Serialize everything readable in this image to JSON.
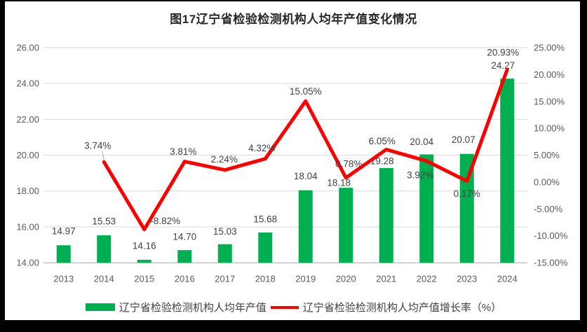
{
  "title": "图17辽宁省检验检测机构人均年产值变化情况",
  "colors": {
    "bar": "#00B050",
    "line": "#FF0000",
    "grid": "#D9D9D9",
    "axis_line": "#BFBFBF",
    "axis_text": "#595959",
    "data_label_text": "#404040",
    "title_text": "#262626",
    "frame": "#000000",
    "background": "#FFFFFF",
    "leader_line": "#A6A6A6"
  },
  "chart_data": {
    "type": "bar+line combo",
    "title": "图17辽宁省检验检测机构人均年产值变化情况",
    "grid": true,
    "legend_position": "bottom",
    "categories": [
      "2013",
      "2014",
      "2015",
      "2016",
      "2017",
      "2018",
      "2019",
      "2020",
      "2021",
      "2022",
      "2023",
      "2024"
    ],
    "series": [
      {
        "name": "辽宁省检验检测机构人均年产值",
        "type": "bar",
        "axis": "left",
        "color": "#00B050",
        "values": [
          14.97,
          15.53,
          14.16,
          14.7,
          15.03,
          15.68,
          18.04,
          18.18,
          19.28,
          20.04,
          20.07,
          24.27
        ],
        "data_labels": [
          "14.97",
          "15.53",
          "14.16",
          "14.70",
          "15.03",
          "15.68",
          "18.04",
          "18.18",
          "19.28",
          "20.04",
          "20.07",
          "24.27"
        ]
      },
      {
        "name": "辽宁省检验检测机构人均产值增长率（%）",
        "type": "line",
        "axis": "right",
        "color": "#FF0000",
        "values": [
          null,
          3.74,
          -8.82,
          3.81,
          2.24,
          4.32,
          15.05,
          0.78,
          6.05,
          3.92,
          0.17,
          20.93
        ],
        "data_labels": [
          null,
          "3.74%",
          "-8.82%",
          "3.81%",
          "2.24%",
          "4.32%",
          "15.05%",
          "0.78%",
          "6.05%",
          "3.92%",
          "0.17%",
          "20.93%"
        ]
      }
    ],
    "left_axis": {
      "min": 14,
      "max": 26,
      "step": 2,
      "ticks": [
        "26.00",
        "24.00",
        "22.00",
        "20.00",
        "18.00",
        "16.00",
        "14.00"
      ]
    },
    "right_axis": {
      "min": -15,
      "max": 25,
      "step": 5,
      "ticks": [
        "25.00%",
        "20.00%",
        "15.00%",
        "10.00%",
        "5.00%",
        "0.00%",
        "-5.00%",
        "-10.00%",
        "-15.00%"
      ]
    }
  },
  "legend": {
    "items": [
      {
        "label": "辽宁省检验检测机构人均年产值",
        "swatch": "bar",
        "color": "#00B050"
      },
      {
        "label": "辽宁省检验检测机构人均产值增长率（%）",
        "swatch": "line",
        "color": "#FF0000"
      }
    ]
  }
}
